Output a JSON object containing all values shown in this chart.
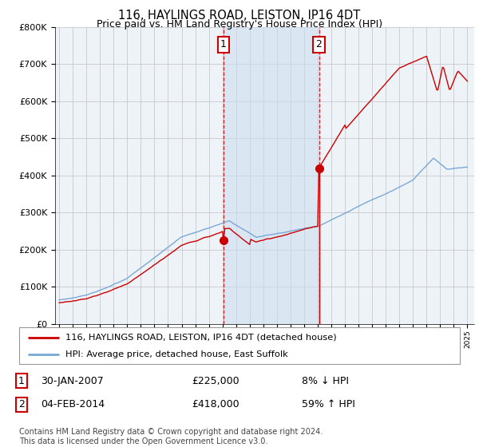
{
  "title": "116, HAYLINGS ROAD, LEISTON, IP16 4DT",
  "subtitle": "Price paid vs. HM Land Registry's House Price Index (HPI)",
  "hpi_label": "HPI: Average price, detached house, East Suffolk",
  "property_label": "116, HAYLINGS ROAD, LEISTON, IP16 4DT (detached house)",
  "sale1_date": "30-JAN-2007",
  "sale1_price": 225000,
  "sale1_note": "8% ↓ HPI",
  "sale2_date": "04-FEB-2014",
  "sale2_price": 418000,
  "sale2_note": "59% ↑ HPI",
  "sale1_year": 2007.08,
  "sale2_year": 2014.09,
  "hpi_color": "#7aa8d4",
  "property_color": "#cc0000",
  "background_color": "#ffffff",
  "plot_bg_color": "#eef3f8",
  "shade_color": "#ccddf0",
  "grid_color": "#c8c8d0",
  "ylim": [
    0,
    800000
  ],
  "yticks": [
    0,
    100000,
    200000,
    300000,
    400000,
    500000,
    600000,
    700000,
    800000
  ],
  "xmin": 1994.7,
  "xmax": 2025.5,
  "footer": "Contains HM Land Registry data © Crown copyright and database right 2024.\nThis data is licensed under the Open Government Licence v3.0."
}
